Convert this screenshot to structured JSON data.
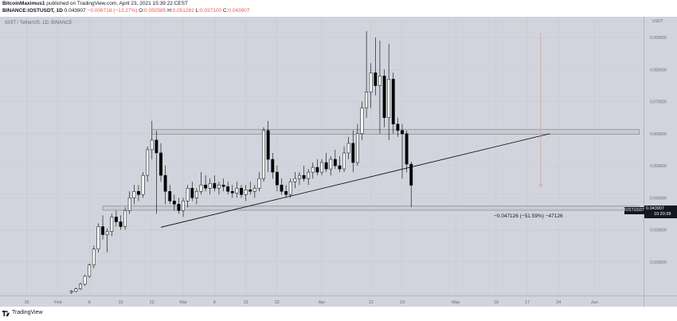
{
  "header": {
    "author": "BitcoinMaximus1",
    "published_text": "published on TradingView.com, April 23, 2021 15:39:22 CEST",
    "symbol_line": "BINANCE:IOSTUSDT, 1D",
    "last_price": "0.043907",
    "change": "−0.006718 (−13.27%)",
    "o_label": "O:",
    "o_value": "0.050585",
    "h_label": "H:",
    "h_value": "0.051281",
    "l_label": "L:",
    "l_value": "0.037100",
    "c_label": "C:",
    "c_value": "0.043907"
  },
  "chart_title": "IOST / TetherUS, 1D, BINANCE",
  "axis_unit": "USDT",
  "price_tag": {
    "symbol": "IOSTUSDT",
    "value": "0.043907",
    "countdown": "10:20:39"
  },
  "measure_label": "−0.047126 (−51.59%) −47126",
  "footer_text": "TradingView",
  "colors": {
    "bull": "#ffffff",
    "bear": "#000000",
    "background": "#d1d4dc",
    "resistance_zone": "#c8cad0",
    "measure_arrow": "#e8909c"
  },
  "chart_data": {
    "type": "candlestick",
    "title": "IOST / TetherUS, 1D, BINANCE",
    "ylabel": "USDT",
    "ylim": [
      0.0095,
      0.0965
    ],
    "yticks": [
      0.01,
      0.02,
      0.03,
      0.04,
      0.05,
      0.06,
      0.07,
      0.08,
      0.09,
      0.095
    ],
    "ytick_labels": [
      "0.010000",
      "0.020000",
      "0.030000",
      "0.040000",
      "0.050000",
      "0.060000",
      "0.070000",
      "0.080000",
      "0.090000",
      "0.095000"
    ],
    "x_tick_labels": [
      {
        "label": "25",
        "day": -10
      },
      {
        "label": "Feb",
        "day": -3
      },
      {
        "label": "8",
        "day": 4
      },
      {
        "label": "15",
        "day": 11
      },
      {
        "label": "22",
        "day": 18
      },
      {
        "label": "Mar",
        "day": 25
      },
      {
        "label": "8",
        "day": 32
      },
      {
        "label": "15",
        "day": 39
      },
      {
        "label": "22",
        "day": 46
      },
      {
        "label": "Apr",
        "day": 56
      },
      {
        "label": "12",
        "day": 67
      },
      {
        "label": "19",
        "day": 74
      },
      {
        "label": "May",
        "day": 86
      },
      {
        "label": "10",
        "day": 95
      },
      {
        "label": "17",
        "day": 102
      },
      {
        "label": "24",
        "day": 109
      },
      {
        "label": "Jun",
        "day": 117
      }
    ],
    "x_range_days": [
      -16,
      128
    ],
    "first_candle_day": 0,
    "candles": [
      [
        0.0105,
        0.0112,
        0.01,
        0.0108
      ],
      [
        0.0108,
        0.012,
        0.0104,
        0.0116
      ],
      [
        0.0116,
        0.0135,
        0.0112,
        0.013
      ],
      [
        0.013,
        0.016,
        0.0125,
        0.0155
      ],
      [
        0.0155,
        0.0195,
        0.015,
        0.019
      ],
      [
        0.019,
        0.025,
        0.018,
        0.024
      ],
      [
        0.024,
        0.032,
        0.023,
        0.031
      ],
      [
        0.031,
        0.0345,
        0.027,
        0.0285
      ],
      [
        0.0285,
        0.0305,
        0.023,
        0.0295
      ],
      [
        0.0295,
        0.035,
        0.028,
        0.034
      ],
      [
        0.034,
        0.036,
        0.031,
        0.0325
      ],
      [
        0.0325,
        0.0345,
        0.03,
        0.031
      ],
      [
        0.031,
        0.037,
        0.03,
        0.036
      ],
      [
        0.036,
        0.042,
        0.035,
        0.04
      ],
      [
        0.04,
        0.044,
        0.038,
        0.042
      ],
      [
        0.042,
        0.044,
        0.039,
        0.041
      ],
      [
        0.041,
        0.048,
        0.04,
        0.047
      ],
      [
        0.047,
        0.056,
        0.045,
        0.055
      ],
      [
        0.055,
        0.064,
        0.052,
        0.058
      ],
      [
        0.058,
        0.061,
        0.035,
        0.054
      ],
      [
        0.054,
        0.057,
        0.045,
        0.047
      ],
      [
        0.047,
        0.05,
        0.038,
        0.042
      ],
      [
        0.042,
        0.044,
        0.038,
        0.039
      ],
      [
        0.039,
        0.041,
        0.036,
        0.038
      ],
      [
        0.038,
        0.04,
        0.035,
        0.036
      ],
      [
        0.036,
        0.04,
        0.034,
        0.039
      ],
      [
        0.039,
        0.044,
        0.037,
        0.043
      ],
      [
        0.043,
        0.045,
        0.039,
        0.04
      ],
      [
        0.04,
        0.043,
        0.038,
        0.042
      ],
      [
        0.042,
        0.048,
        0.041,
        0.044
      ],
      [
        0.044,
        0.047,
        0.042,
        0.043
      ],
      [
        0.043,
        0.046,
        0.041,
        0.0445
      ],
      [
        0.0445,
        0.047,
        0.042,
        0.043
      ],
      [
        0.043,
        0.045,
        0.041,
        0.044
      ],
      [
        0.044,
        0.046,
        0.042,
        0.0435
      ],
      [
        0.0435,
        0.045,
        0.041,
        0.042
      ],
      [
        0.042,
        0.044,
        0.04,
        0.0415
      ],
      [
        0.0415,
        0.045,
        0.04,
        0.043
      ],
      [
        0.043,
        0.044,
        0.04,
        0.041
      ],
      [
        0.041,
        0.044,
        0.039,
        0.0425
      ],
      [
        0.0425,
        0.045,
        0.041,
        0.042
      ],
      [
        0.042,
        0.044,
        0.04,
        0.043
      ],
      [
        0.043,
        0.048,
        0.042,
        0.046
      ],
      [
        0.046,
        0.062,
        0.045,
        0.061
      ],
      [
        0.061,
        0.064,
        0.048,
        0.052
      ],
      [
        0.052,
        0.054,
        0.046,
        0.048
      ],
      [
        0.048,
        0.05,
        0.042,
        0.044
      ],
      [
        0.044,
        0.046,
        0.041,
        0.042
      ],
      [
        0.042,
        0.044,
        0.04,
        0.041
      ],
      [
        0.041,
        0.046,
        0.04,
        0.045
      ],
      [
        0.045,
        0.048,
        0.043,
        0.046
      ],
      [
        0.046,
        0.048,
        0.044,
        0.047
      ],
      [
        0.047,
        0.05,
        0.045,
        0.046
      ],
      [
        0.046,
        0.049,
        0.044,
        0.048
      ],
      [
        0.048,
        0.051,
        0.046,
        0.0495
      ],
      [
        0.0495,
        0.052,
        0.047,
        0.048
      ],
      [
        0.048,
        0.052,
        0.047,
        0.051
      ],
      [
        0.051,
        0.054,
        0.048,
        0.049
      ],
      [
        0.049,
        0.053,
        0.047,
        0.052
      ],
      [
        0.052,
        0.055,
        0.049,
        0.05
      ],
      [
        0.05,
        0.053,
        0.048,
        0.049
      ],
      [
        0.049,
        0.056,
        0.048,
        0.054
      ],
      [
        0.054,
        0.059,
        0.052,
        0.057
      ],
      [
        0.057,
        0.061,
        0.048,
        0.051
      ],
      [
        0.051,
        0.063,
        0.05,
        0.06
      ],
      [
        0.06,
        0.07,
        0.058,
        0.068
      ],
      [
        0.068,
        0.092,
        0.065,
        0.073
      ],
      [
        0.073,
        0.082,
        0.068,
        0.079
      ],
      [
        0.079,
        0.09,
        0.072,
        0.075
      ],
      [
        0.075,
        0.089,
        0.06,
        0.078
      ],
      [
        0.078,
        0.08,
        0.062,
        0.065
      ],
      [
        0.065,
        0.088,
        0.058,
        0.077
      ],
      [
        0.077,
        0.079,
        0.06,
        0.063
      ],
      [
        0.063,
        0.065,
        0.059,
        0.061
      ],
      [
        0.061,
        0.063,
        0.046,
        0.06
      ],
      [
        0.06,
        0.061,
        0.048,
        0.0505
      ],
      [
        0.0505,
        0.0513,
        0.0371,
        0.0439
      ]
    ],
    "resistance_zone": {
      "from_day": 18,
      "to_day": 127,
      "low": 0.0598,
      "high": 0.0613
    },
    "support_zone": {
      "from_day": 7,
      "to_day": 127,
      "low": 0.0361,
      "high": 0.0374
    },
    "trendline": {
      "from": [
        20,
        0.0308
      ],
      "to": [
        107,
        0.06
      ]
    },
    "measure": {
      "day": 105,
      "from_price": 0.0914,
      "to_price": 0.0435
    }
  }
}
